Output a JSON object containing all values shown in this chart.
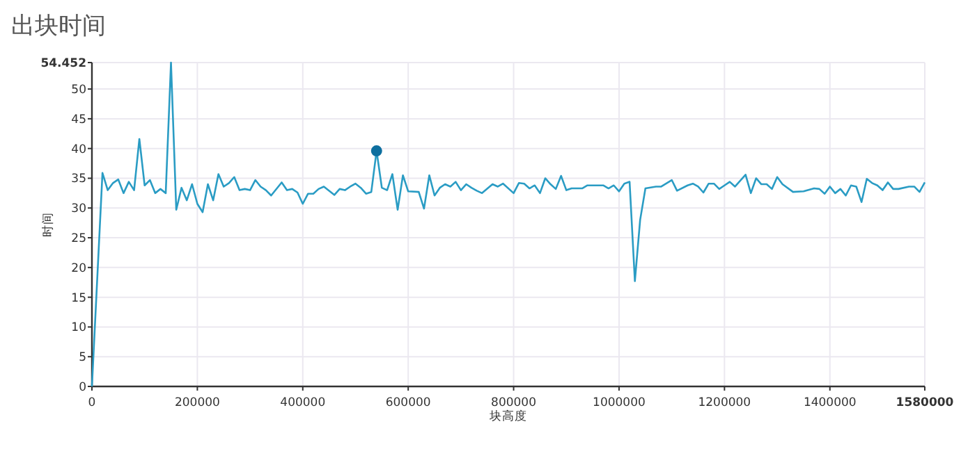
{
  "chart_data": {
    "type": "line",
    "title": "出块时间",
    "xlabel": "块高度",
    "ylabel": "时间",
    "xlim": [
      0,
      1580000
    ],
    "ylim": [
      0,
      54.452
    ],
    "xticks": [
      0,
      200000,
      400000,
      600000,
      800000,
      1000000,
      1200000,
      1400000,
      1580000
    ],
    "yticks": [
      0,
      5,
      10,
      15,
      20,
      25,
      30,
      35,
      40,
      45,
      50,
      54.452
    ],
    "grid": true,
    "series": [
      {
        "color": "#2a9cc4",
        "x": [
          0,
          20000,
          30000,
          40000,
          50000,
          60000,
          70000,
          80000,
          90000,
          100000,
          110000,
          120000,
          130000,
          140000,
          150000,
          160000,
          170000,
          180000,
          190000,
          200000,
          210000,
          220000,
          230000,
          240000,
          250000,
          260000,
          270000,
          280000,
          290000,
          300000,
          310000,
          320000,
          330000,
          340000,
          360000,
          370000,
          380000,
          390000,
          400000,
          410000,
          420000,
          430000,
          440000,
          460000,
          470000,
          480000,
          490000,
          500000,
          510000,
          520000,
          530000,
          540000,
          550000,
          560000,
          570000,
          580000,
          590000,
          600000,
          620000,
          630000,
          640000,
          650000,
          660000,
          670000,
          680000,
          690000,
          700000,
          710000,
          720000,
          730000,
          740000,
          760000,
          770000,
          780000,
          800000,
          810000,
          820000,
          830000,
          840000,
          850000,
          860000,
          870000,
          880000,
          890000,
          900000,
          910000,
          930000,
          940000,
          970000,
          980000,
          990000,
          1000000,
          1010000,
          1020000,
          1030000,
          1040000,
          1050000,
          1070000,
          1080000,
          1100000,
          1110000,
          1130000,
          1140000,
          1150000,
          1160000,
          1170000,
          1180000,
          1190000,
          1200000,
          1210000,
          1220000,
          1240000,
          1250000,
          1260000,
          1270000,
          1280000,
          1290000,
          1300000,
          1310000,
          1330000,
          1350000,
          1370000,
          1380000,
          1390000,
          1400000,
          1410000,
          1420000,
          1430000,
          1440000,
          1450000,
          1460000,
          1470000,
          1480000,
          1490000,
          1500000,
          1510000,
          1520000,
          1530000,
          1550000,
          1560000,
          1570000,
          1580000
        ],
        "values": [
          0,
          35.9,
          33,
          34.2,
          34.8,
          32.5,
          34.4,
          33,
          41.6,
          33.8,
          34.7,
          32.5,
          33.2,
          32.5,
          54.452,
          29.7,
          33.4,
          31.3,
          34,
          30.7,
          29.3,
          34,
          31.3,
          35.7,
          33.6,
          34.2,
          35.2,
          33,
          33.2,
          33,
          34.7,
          33.6,
          33,
          32.1,
          34.3,
          33,
          33.2,
          32.6,
          30.7,
          32.4,
          32.4,
          33.2,
          33.6,
          32.2,
          33.2,
          33,
          33.6,
          34.1,
          33.4,
          32.4,
          32.7,
          39.6,
          33.4,
          33,
          35.7,
          29.7,
          35.5,
          32.8,
          32.7,
          29.9,
          35.5,
          32.1,
          33.4,
          34,
          33.6,
          34.4,
          33,
          34,
          33.4,
          32.9,
          32.5,
          34,
          33.6,
          34.1,
          32.5,
          34.2,
          34.1,
          33.3,
          33.8,
          32.5,
          35,
          34,
          33.2,
          35.4,
          33,
          33.3,
          33.3,
          33.8,
          33.8,
          33.3,
          33.8,
          32.8,
          34.1,
          34.4,
          17.7,
          28,
          33.3,
          33.6,
          33.6,
          34.7,
          32.9,
          33.8,
          34.1,
          33.6,
          32.6,
          34.1,
          34.1,
          33.2,
          33.8,
          34.4,
          33.6,
          35.6,
          32.5,
          35,
          34,
          34,
          33.2,
          35.2,
          34,
          32.7,
          32.8,
          33.3,
          33.2,
          32.4,
          33.6,
          32.5,
          33.2,
          32.1,
          33.8,
          33.6,
          31,
          34.9,
          34.2,
          33.8,
          33,
          34.3,
          33.2,
          33.2,
          33.6,
          33.6,
          32.7,
          34.3
        ]
      },
      {
        "type": "scatter",
        "color": "#0d6f9f",
        "marker": "circle",
        "x": [
          540000
        ],
        "values": [
          39.6
        ]
      }
    ]
  }
}
